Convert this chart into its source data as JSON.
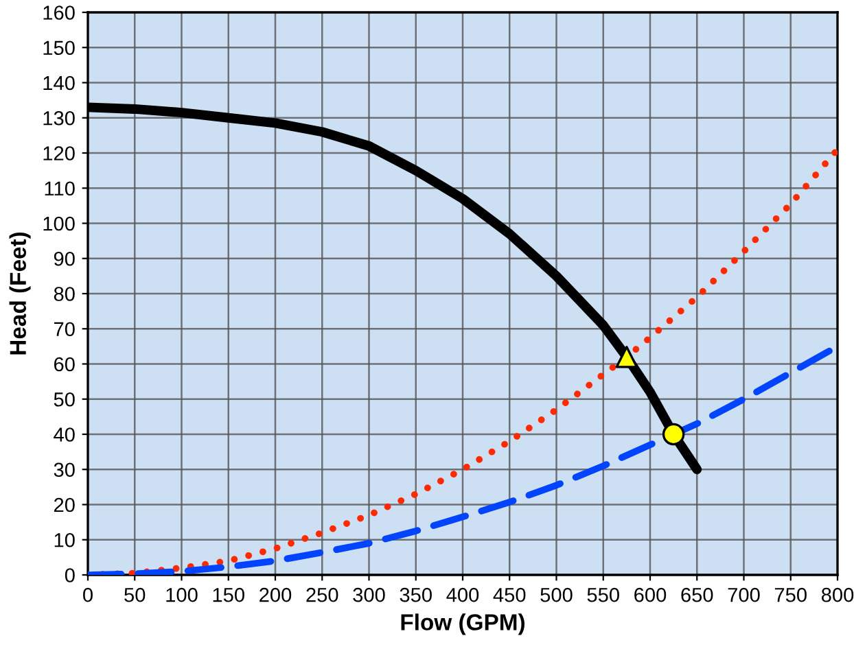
{
  "chart_data": {
    "type": "line",
    "xlabel": "Flow (GPM)",
    "ylabel": "Head (Feet)",
    "xlim": [
      0,
      800
    ],
    "ylim": [
      0,
      160
    ],
    "xticks": [
      0,
      50,
      100,
      150,
      200,
      250,
      300,
      350,
      400,
      450,
      500,
      550,
      600,
      650,
      700,
      750,
      800
    ],
    "yticks": [
      0,
      10,
      20,
      30,
      40,
      50,
      60,
      70,
      80,
      90,
      100,
      110,
      120,
      130,
      140,
      150,
      160
    ],
    "grid": true,
    "series": [
      {
        "color": "#000000",
        "line_style": "solid",
        "marker": "none",
        "x": [
          0,
          50,
          100,
          150,
          200,
          250,
          300,
          350,
          400,
          450,
          500,
          550,
          575,
          600,
          625,
          650
        ],
        "values": [
          133,
          132.5,
          131.5,
          130,
          128.5,
          126,
          122,
          115,
          107,
          97,
          85,
          71,
          62,
          52,
          40,
          30
        ]
      },
      {
        "color": "#ff2a00",
        "line_style": "dotted",
        "marker": "none",
        "x": [
          0,
          50,
          100,
          150,
          200,
          250,
          300,
          350,
          400,
          450,
          500,
          550,
          575,
          600,
          650,
          700,
          750,
          800
        ],
        "values": [
          0,
          0.5,
          2,
          4,
          7.5,
          12,
          17,
          23,
          30,
          38,
          47,
          57,
          62,
          67.5,
          79,
          92,
          105.5,
          121
        ]
      },
      {
        "color": "#0044ff",
        "line_style": "dashed",
        "marker": "none",
        "x": [
          0,
          50,
          100,
          150,
          200,
          250,
          300,
          350,
          400,
          450,
          500,
          550,
          600,
          625,
          650,
          700,
          750,
          800
        ],
        "values": [
          0,
          0.3,
          1,
          2.3,
          4,
          6.4,
          9,
          12.5,
          16.5,
          20.7,
          25.5,
          31,
          37,
          40,
          43,
          50,
          57.5,
          65
        ]
      },
      {
        "type": "scatter",
        "color": "#ffff00",
        "marker": "triangle",
        "x": [
          575
        ],
        "values": [
          62
        ]
      },
      {
        "type": "scatter",
        "color": "#ffff00",
        "marker": "circle",
        "x": [
          625
        ],
        "values": [
          40
        ]
      }
    ]
  }
}
